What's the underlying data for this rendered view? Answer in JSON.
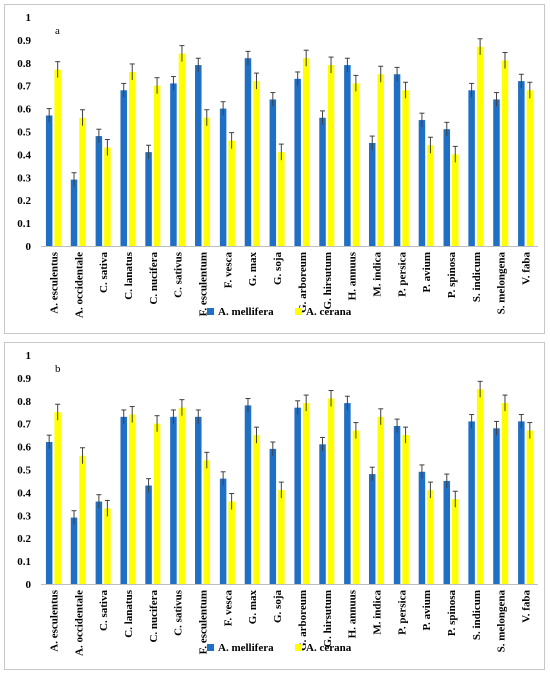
{
  "chart_data": [
    {
      "type": "bar",
      "panel_label": "a",
      "categories": [
        "A. esculentus",
        "A. occidentale",
        "C. sativa",
        "C. lanatus",
        "C. nucifera",
        "C. sativus",
        "F. esculentum",
        "F. vesca",
        "G. max",
        "G. soja",
        "G. arboreum",
        "G. hirsutum",
        "H. annuus",
        "M. indica",
        "P. persica",
        "P. avium",
        "P. spinosa",
        "S. indicum",
        "S. melongena",
        "V. faba"
      ],
      "series": [
        {
          "name": "A. mellifera",
          "color": "#1f6fc5",
          "values": [
            0.57,
            0.29,
            0.48,
            0.68,
            0.41,
            0.71,
            0.79,
            0.6,
            0.82,
            0.64,
            0.73,
            0.56,
            0.79,
            0.45,
            0.75,
            0.55,
            0.51,
            0.68,
            0.64,
            0.72
          ],
          "errors": [
            0.03,
            0.03,
            0.03,
            0.03,
            0.03,
            0.03,
            0.03,
            0.03,
            0.03,
            0.03,
            0.03,
            0.03,
            0.03,
            0.03,
            0.03,
            0.03,
            0.03,
            0.03,
            0.03,
            0.03
          ]
        },
        {
          "name": "A. cerana",
          "color": "#ffff00",
          "values": [
            0.77,
            0.56,
            0.43,
            0.76,
            0.7,
            0.84,
            0.56,
            0.46,
            0.72,
            0.41,
            0.82,
            0.79,
            0.71,
            0.75,
            0.68,
            0.44,
            0.4,
            0.87,
            0.81,
            0.68
          ],
          "errors": [
            0.035,
            0.035,
            0.035,
            0.035,
            0.035,
            0.035,
            0.035,
            0.035,
            0.035,
            0.035,
            0.035,
            0.035,
            0.035,
            0.035,
            0.035,
            0.035,
            0.035,
            0.035,
            0.035,
            0.035
          ]
        }
      ],
      "ylim": [
        0,
        1
      ],
      "yticks": [
        "0",
        "0.1",
        "0.2",
        "0.3",
        "0.4",
        "0.5",
        "0.6",
        "0.7",
        "0.8",
        "0.9",
        "1"
      ],
      "grid": false,
      "legend_position": "bottom"
    },
    {
      "type": "bar",
      "panel_label": "b",
      "categories": [
        "A. esculentus",
        "A. occidentale",
        "C. sativa",
        "C. lanatus",
        "C. nucifera",
        "C. sativus",
        "F. esculentum",
        "F. vesca",
        "G. max",
        "G. soja",
        "G. arboreum",
        "G. hirsutum",
        "H. annuus",
        "M. indica",
        "P. persica",
        "P. avium",
        "P. spinosa",
        "S. indicum",
        "S. melongena",
        "V. faba"
      ],
      "series": [
        {
          "name": "A. mellifera",
          "color": "#1f6fc5",
          "values": [
            0.62,
            0.29,
            0.36,
            0.73,
            0.43,
            0.73,
            0.73,
            0.46,
            0.78,
            0.59,
            0.77,
            0.61,
            0.79,
            0.48,
            0.69,
            0.49,
            0.45,
            0.71,
            0.68,
            0.71
          ],
          "errors": [
            0.03,
            0.03,
            0.03,
            0.03,
            0.03,
            0.03,
            0.03,
            0.03,
            0.03,
            0.03,
            0.03,
            0.03,
            0.03,
            0.03,
            0.03,
            0.03,
            0.03,
            0.03,
            0.03,
            0.03
          ]
        },
        {
          "name": "A. cerana",
          "color": "#ffff00",
          "values": [
            0.75,
            0.56,
            0.33,
            0.74,
            0.7,
            0.77,
            0.54,
            0.36,
            0.65,
            0.41,
            0.79,
            0.81,
            0.67,
            0.73,
            0.65,
            0.41,
            0.37,
            0.85,
            0.79,
            0.67
          ],
          "errors": [
            0.035,
            0.035,
            0.035,
            0.035,
            0.035,
            0.035,
            0.035,
            0.035,
            0.035,
            0.035,
            0.035,
            0.035,
            0.035,
            0.035,
            0.035,
            0.035,
            0.035,
            0.035,
            0.035,
            0.035
          ]
        }
      ],
      "ylim": [
        0,
        1
      ],
      "yticks": [
        "0",
        "0.1",
        "0.2",
        "0.3",
        "0.4",
        "0.5",
        "0.6",
        "0.7",
        "0.8",
        "0.9",
        "1"
      ],
      "grid": false,
      "legend_position": "bottom"
    }
  ]
}
